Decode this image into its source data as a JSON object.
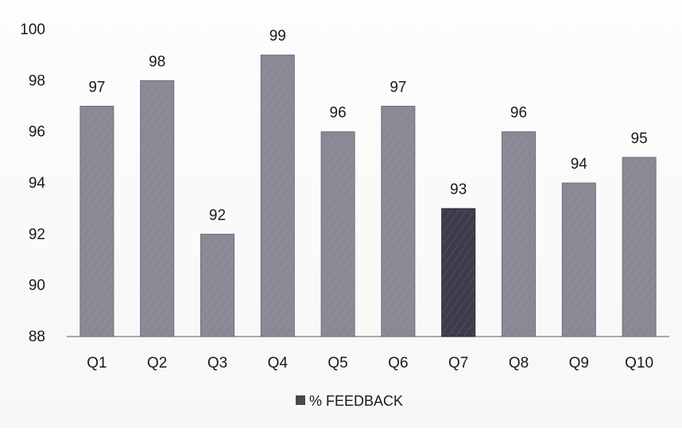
{
  "chart_data": {
    "type": "bar",
    "categories": [
      "Q1",
      "Q2",
      "Q3",
      "Q4",
      "Q5",
      "Q6",
      "Q7",
      "Q8",
      "Q9",
      "Q10"
    ],
    "series": [
      {
        "name": "% FEEDBACK",
        "values": [
          97,
          98,
          92,
          99,
          96,
          97,
          93,
          96,
          94,
          95
        ]
      }
    ],
    "data_labels": [
      "97",
      "98",
      "92",
      "99",
      "96",
      "97",
      "93",
      "96",
      "94",
      "95"
    ],
    "y_ticks": [
      "100",
      "98",
      "96",
      "94",
      "92",
      "90",
      "88"
    ],
    "ylim": [
      88,
      100
    ],
    "grid": false,
    "legend_position": "bottom",
    "colors": {
      "bar": "#8c8a97",
      "highlight_bar": "#3f3b4a",
      "legend_swatch": "#4a4652",
      "axis": "#7a7a7a"
    }
  }
}
